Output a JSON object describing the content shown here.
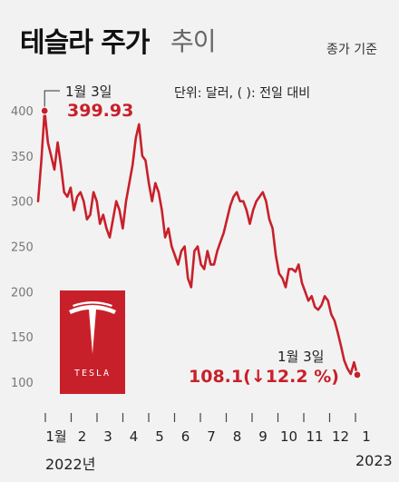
{
  "title": {
    "main": "테슬라 주가",
    "sub": "추이"
  },
  "notes": {
    "basis": "종가 기준",
    "unit": "단위: 달러, (  ): 전일 대비"
  },
  "annotations": {
    "start": {
      "label": "1월 3일",
      "value": "399.93"
    },
    "end": {
      "label": "1월 3일",
      "value": "108.1(↓12.2 %)"
    }
  },
  "logo": {
    "text": "TESLA"
  },
  "years": {
    "start": "2022년",
    "end": "2023"
  },
  "colors": {
    "line": "#c8202a",
    "accent": "#c8202a",
    "logo_bg": "#c8202a",
    "background": "#f2f2f2"
  },
  "chart_data": {
    "type": "line",
    "ylim": [
      100,
      400
    ],
    "yticks": [
      100,
      150,
      200,
      250,
      300,
      350,
      400
    ],
    "months": [
      "1",
      "2",
      "3",
      "4",
      "5",
      "6",
      "7",
      "8",
      "9",
      "10",
      "11",
      "12",
      "1"
    ],
    "grid": false,
    "series": [
      {
        "values": [
          300,
          345,
          399.93,
          365,
          350,
          335,
          365,
          340,
          310,
          305,
          315,
          290,
          305,
          310,
          300,
          280,
          285,
          310,
          300,
          275,
          285,
          270,
          260,
          280,
          300,
          290,
          270,
          300,
          320,
          340,
          370,
          385,
          350,
          345,
          320,
          300,
          320,
          310,
          290,
          260,
          270,
          250,
          240,
          230,
          245,
          250,
          215,
          205,
          245,
          250,
          230,
          225,
          245,
          230,
          230,
          245,
          255,
          265,
          280,
          295,
          305,
          310,
          300,
          300,
          290,
          275,
          290,
          300,
          305,
          310,
          300,
          280,
          270,
          240,
          220,
          215,
          205,
          225,
          225,
          222,
          230,
          210,
          200,
          190,
          195,
          183,
          180,
          185,
          195,
          190,
          175,
          168,
          155,
          140,
          124,
          115,
          109,
          122,
          108.1
        ]
      }
    ],
    "annotations": [
      {
        "label": "1월 3일",
        "value": 399.93
      },
      {
        "label": "1월 3일",
        "value": 108.1,
        "change_pct": -12.2
      }
    ]
  }
}
